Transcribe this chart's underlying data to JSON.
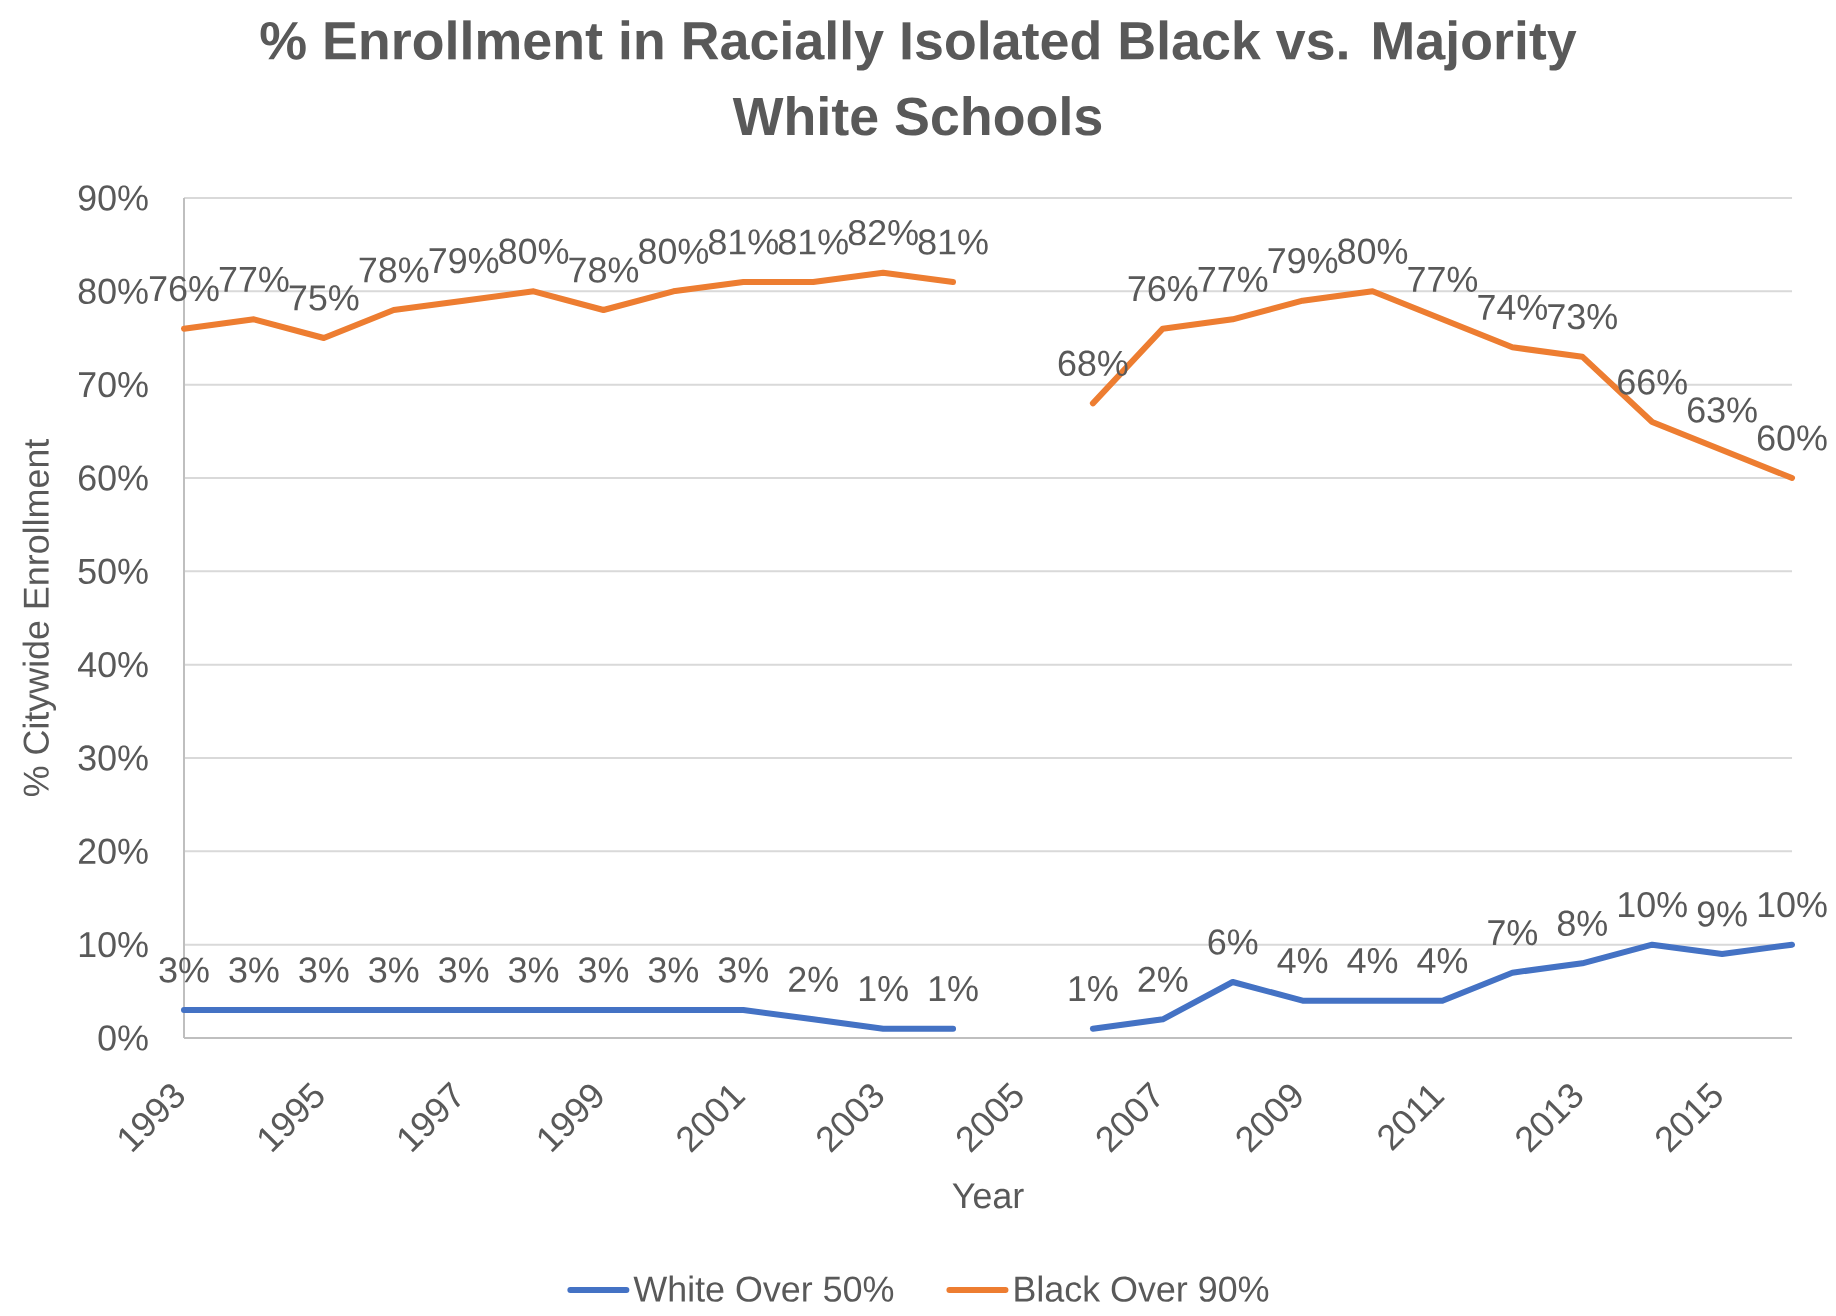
{
  "chart_data": {
    "type": "line",
    "title": "% Enrollment in Racially Isolated Black vs. Majority White Schools",
    "xlabel": "Year",
    "ylabel": "% Citywide Enrollment",
    "categories": [
      "1993",
      null,
      "1995",
      null,
      "1997",
      null,
      "1999",
      null,
      "2001",
      null,
      "2003",
      null,
      "2005",
      null,
      "2007",
      null,
      "2009",
      null,
      "2011",
      null,
      "2013",
      null,
      "2015",
      null
    ],
    "series": [
      {
        "name": "White Over 50%",
        "color": "#4472c4",
        "values": [
          3,
          3,
          3,
          3,
          3,
          3,
          3,
          3,
          3,
          2,
          1,
          1,
          null,
          1,
          2,
          6,
          4,
          4,
          4,
          7,
          8,
          10,
          9,
          10
        ],
        "value_labels": [
          "3%",
          "3%",
          "3%",
          "3%",
          "3%",
          "3%",
          "3%",
          "3%",
          "3%",
          "2%",
          "1%",
          "1%",
          null,
          "1%",
          "2%",
          "6%",
          "4%",
          "4%",
          "4%",
          "7%",
          "8%",
          "10%",
          "9%",
          "10%"
        ]
      },
      {
        "name": "Black Over 90%",
        "color": "#ed7d31",
        "values": [
          76,
          77,
          75,
          78,
          79,
          80,
          78,
          80,
          81,
          81,
          82,
          81,
          null,
          68,
          76,
          77,
          79,
          80,
          77,
          74,
          73,
          66,
          63,
          60
        ],
        "value_labels": [
          "76%",
          "77%",
          "75%",
          "78%",
          "79%",
          "80%",
          "78%",
          "80%",
          "81%",
          "81%",
          "82%",
          "81%",
          null,
          "68%",
          "76%",
          "77%",
          "79%",
          "80%",
          "77%",
          "74%",
          "73%",
          "66%",
          "63%",
          "60%"
        ]
      }
    ],
    "ylim": [
      0,
      90
    ],
    "yticks": [
      {
        "value": 0,
        "label": "0%"
      },
      {
        "value": 10,
        "label": "10%"
      },
      {
        "value": 20,
        "label": "20%"
      },
      {
        "value": 30,
        "label": "30%"
      },
      {
        "value": 40,
        "label": "40%"
      },
      {
        "value": 50,
        "label": "50%"
      },
      {
        "value": 60,
        "label": "60%"
      },
      {
        "value": 70,
        "label": "70%"
      },
      {
        "value": 80,
        "label": "80%"
      },
      {
        "value": 90,
        "label": "90%"
      }
    ],
    "grid": "y",
    "legend": "bottom"
  }
}
